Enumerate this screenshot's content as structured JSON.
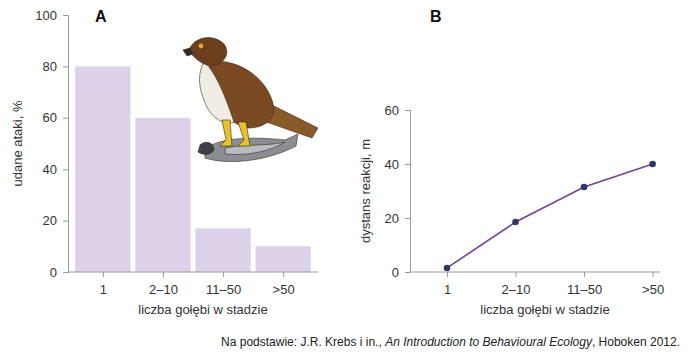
{
  "chart_data": [
    {
      "type": "bar",
      "title": "A",
      "categories": [
        "1",
        "2–10",
        "11–50",
        ">50"
      ],
      "values": [
        80,
        60,
        17,
        10
      ],
      "color": "#dcd1e8",
      "ylabel": "udane ataki, %",
      "xlabel": "liczba gołębi w stadzie",
      "ylim": [
        0,
        100
      ],
      "yticks": [
        0,
        20,
        40,
        60,
        80,
        100
      ],
      "grid": false
    },
    {
      "type": "line",
      "title": "B",
      "categories": [
        "1",
        "2–10",
        "11–50",
        ">50"
      ],
      "values": [
        1.5,
        18.5,
        31.5,
        40
      ],
      "color": "#7a3f96",
      "marker": "circle",
      "ylabel": "dystans reakcji, m",
      "xlabel": "liczba gołębi w stadzie",
      "ylim": [
        0,
        60
      ],
      "yticks": [
        0,
        20,
        40,
        60
      ],
      "grid": false
    }
  ],
  "source": {
    "prefix": "Na podstawie: J.R. Krebs i in., ",
    "title": "An Introduction to Behavioural Ecology",
    "suffix": ", Hoboken 2012."
  }
}
